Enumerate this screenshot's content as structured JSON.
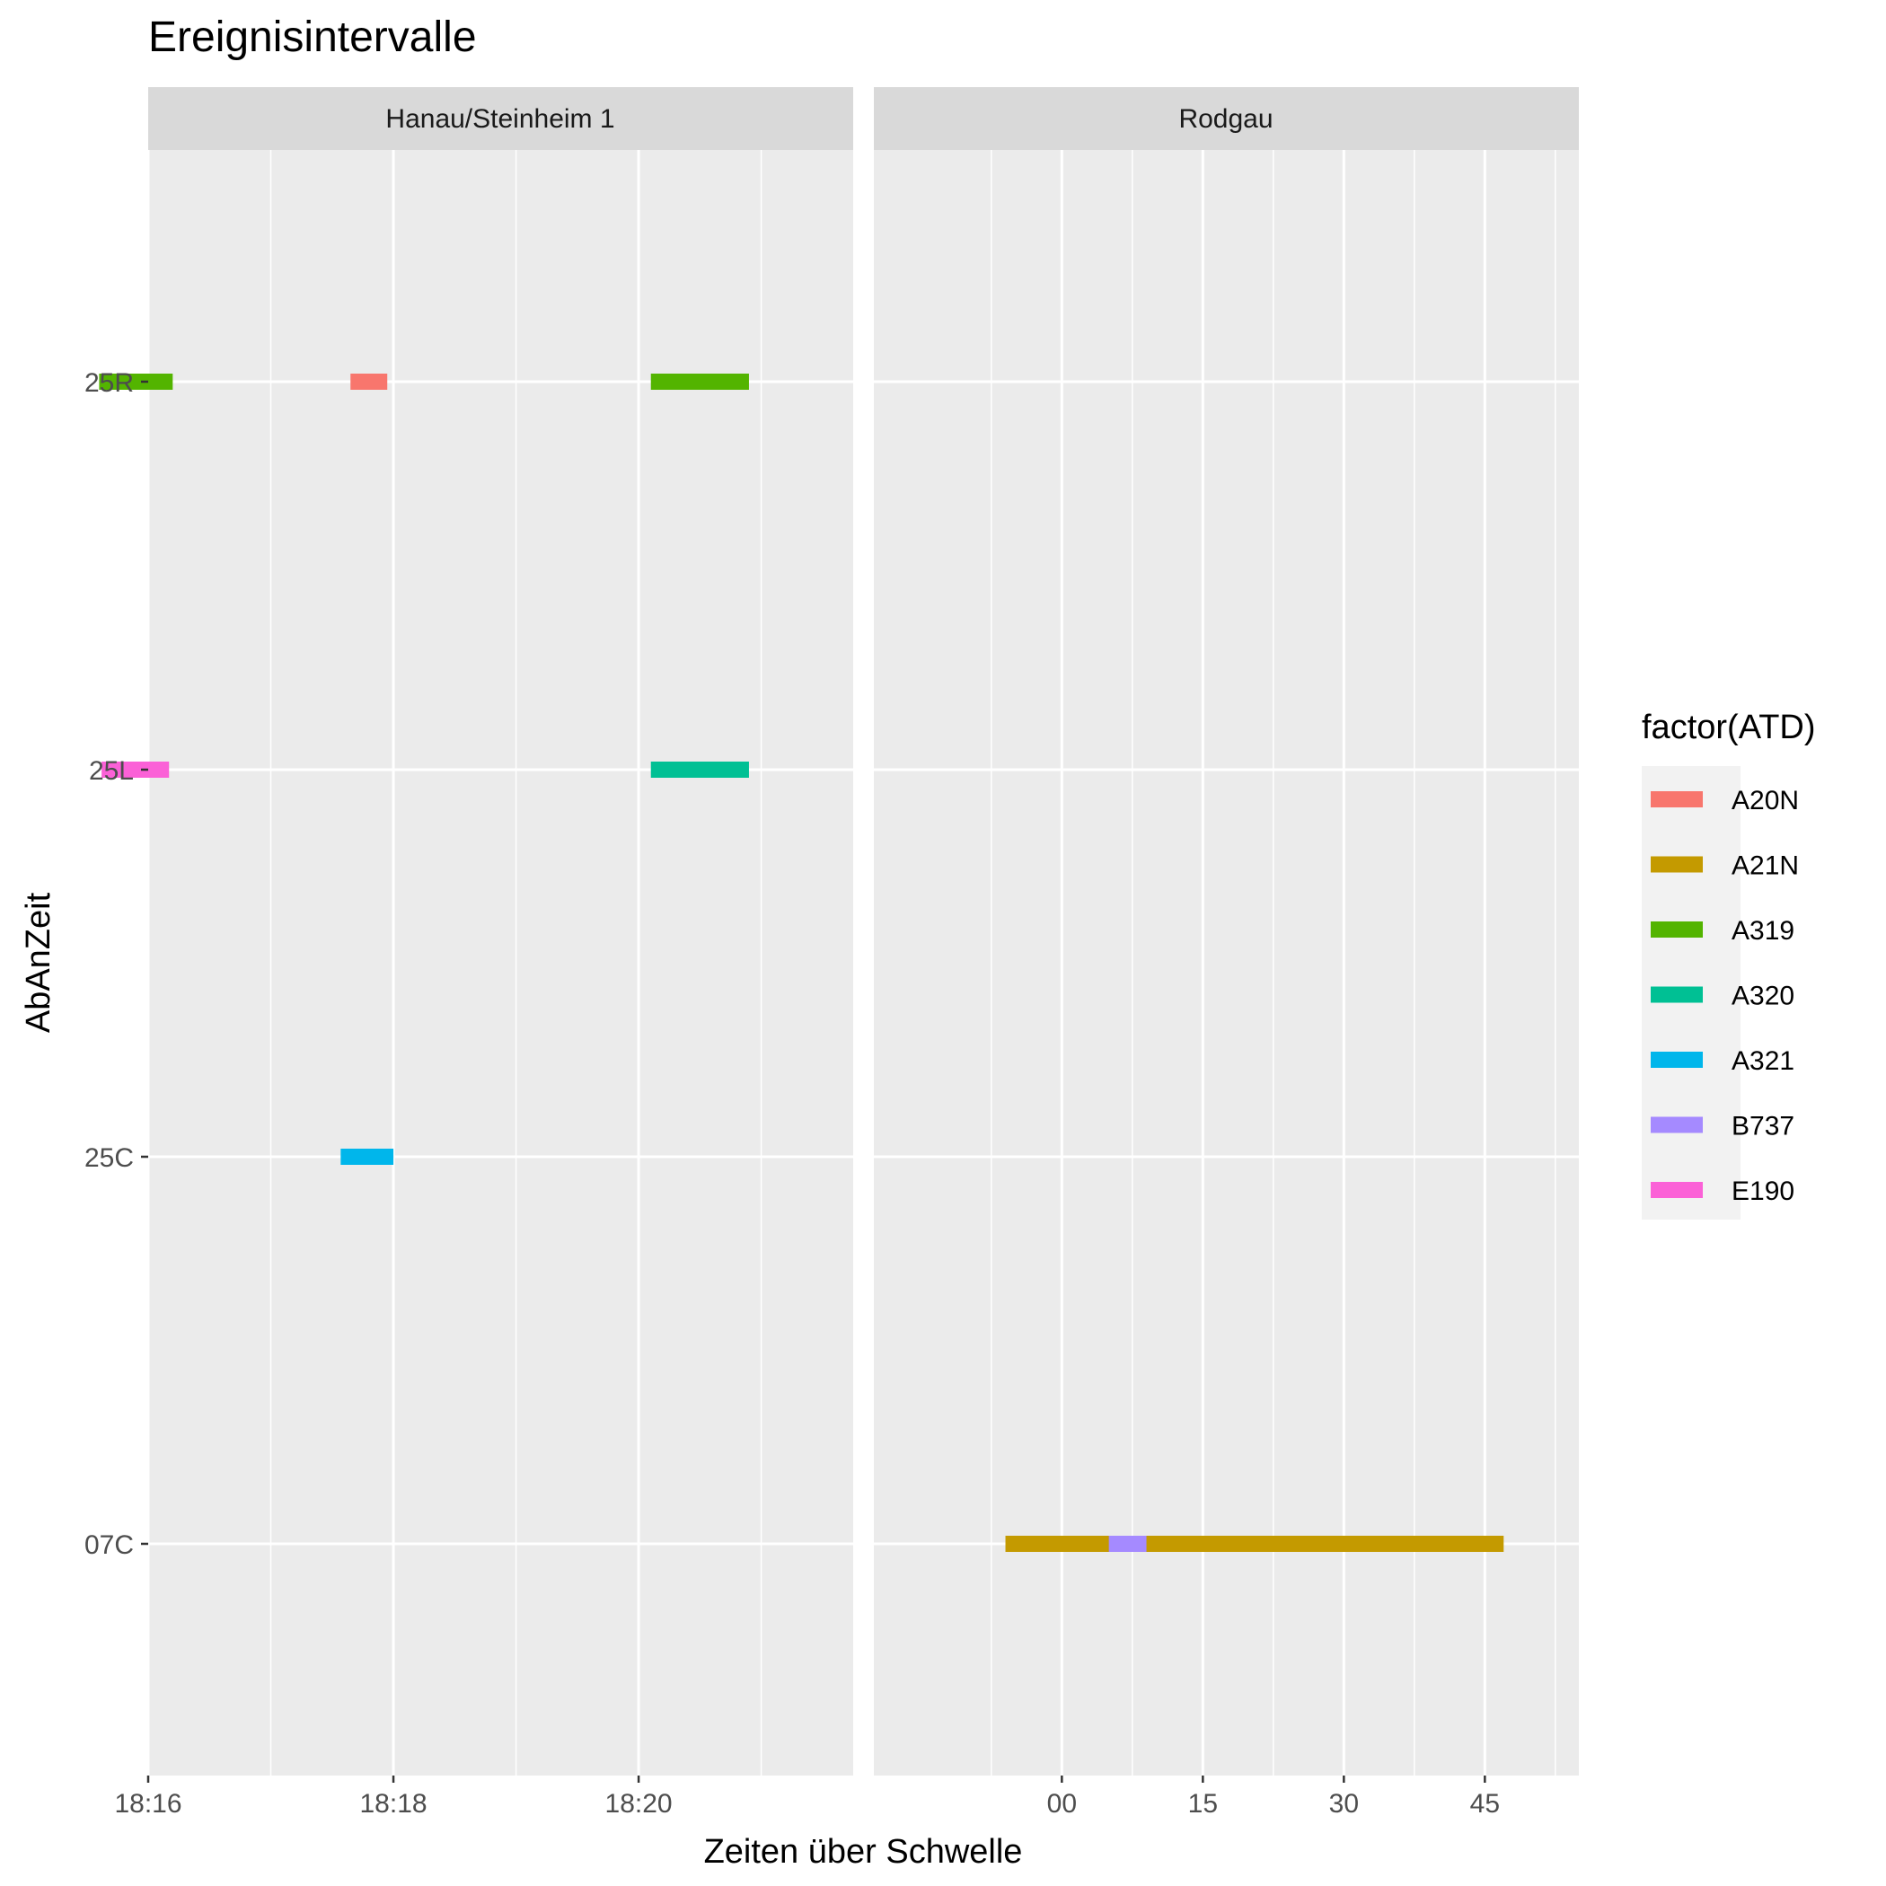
{
  "chart_data": {
    "type": "gantt",
    "title": "Ereignisintervalle",
    "xlabel": "Zeiten über Schwelle",
    "ylabel": "AbAnZeit",
    "categories": [
      "25R",
      "25L",
      "25C",
      "07C"
    ],
    "grid": true,
    "legend": {
      "title": "factor(ATD)",
      "position": "right",
      "items": [
        {
          "label": "A20N",
          "color": "#F8766D"
        },
        {
          "label": "A21N",
          "color": "#C49A00"
        },
        {
          "label": "A319",
          "color": "#53B400"
        },
        {
          "label": "A320",
          "color": "#00C094"
        },
        {
          "label": "A321",
          "color": "#00B6EB"
        },
        {
          "label": "B737",
          "color": "#A58AFF"
        },
        {
          "label": "E190",
          "color": "#FB61D7"
        }
      ]
    },
    "panels": [
      {
        "name": "Hanau/Steinheim 1",
        "x_unit": "minutes of day",
        "xlim": [
          18.0,
          23.75
        ],
        "xticks": [
          {
            "value": 18.0,
            "label": "18:16"
          },
          {
            "value": 20.0,
            "label": "18:18"
          },
          {
            "value": 22.0,
            "label": "18:20"
          }
        ],
        "segments": [
          {
            "category": "25R",
            "atd": "A319",
            "start": 17.6,
            "end": 18.2
          },
          {
            "category": "25R",
            "atd": "A20N",
            "start": 19.65,
            "end": 19.95
          },
          {
            "category": "25R",
            "atd": "A319",
            "start": 22.1,
            "end": 22.9
          },
          {
            "category": "25L",
            "atd": "E190",
            "start": 17.62,
            "end": 18.17
          },
          {
            "category": "25L",
            "atd": "A320",
            "start": 22.1,
            "end": 22.9
          },
          {
            "category": "25C",
            "atd": "A321",
            "start": 19.57,
            "end": 20.0
          }
        ]
      },
      {
        "name": "Rodgau",
        "x_unit": "seconds",
        "xlim": [
          -20,
          55
        ],
        "xticks": [
          {
            "value": 0,
            "label": "00"
          },
          {
            "value": 15,
            "label": "15"
          },
          {
            "value": 30,
            "label": "30"
          },
          {
            "value": 45,
            "label": "45"
          }
        ],
        "segments": [
          {
            "category": "07C",
            "atd": "A21N",
            "start": -6,
            "end": 47
          },
          {
            "category": "07C",
            "atd": "B737",
            "start": 5,
            "end": 9
          }
        ]
      }
    ]
  }
}
